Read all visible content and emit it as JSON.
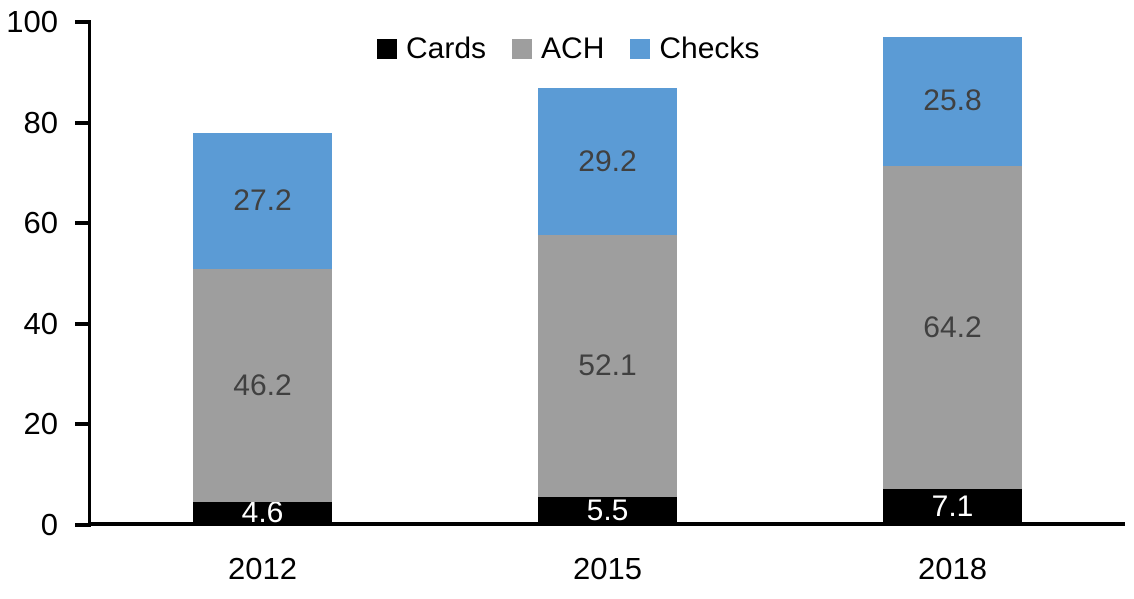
{
  "chart_data": {
    "type": "bar",
    "stacked": true,
    "title": "",
    "categories": [
      "2012",
      "2015",
      "2018"
    ],
    "series": [
      {
        "name": "Cards",
        "color": "#000000",
        "label_color": "#FFFFFF",
        "values": [
          4.6,
          5.5,
          7.1
        ]
      },
      {
        "name": "ACH",
        "color": "#9E9E9E",
        "label_color": "#404040",
        "values": [
          46.2,
          52.1,
          64.2
        ]
      },
      {
        "name": "Checks",
        "color": "#5B9BD5",
        "label_color": "#404040",
        "values": [
          27.2,
          29.2,
          25.8
        ]
      }
    ],
    "totals": [
      78.0,
      86.8,
      97.1
    ],
    "xlabel": "",
    "ylabel": "",
    "ylim": [
      0,
      100
    ],
    "yticks": [
      0,
      20,
      40,
      60,
      80,
      100
    ],
    "grid": false,
    "legend_position": "top-center",
    "legend_labels": [
      "Cards",
      "ACH",
      "Checks"
    ],
    "axis_color": "#000000",
    "data_label_decimals": 1,
    "background": "#FFFFFF"
  }
}
